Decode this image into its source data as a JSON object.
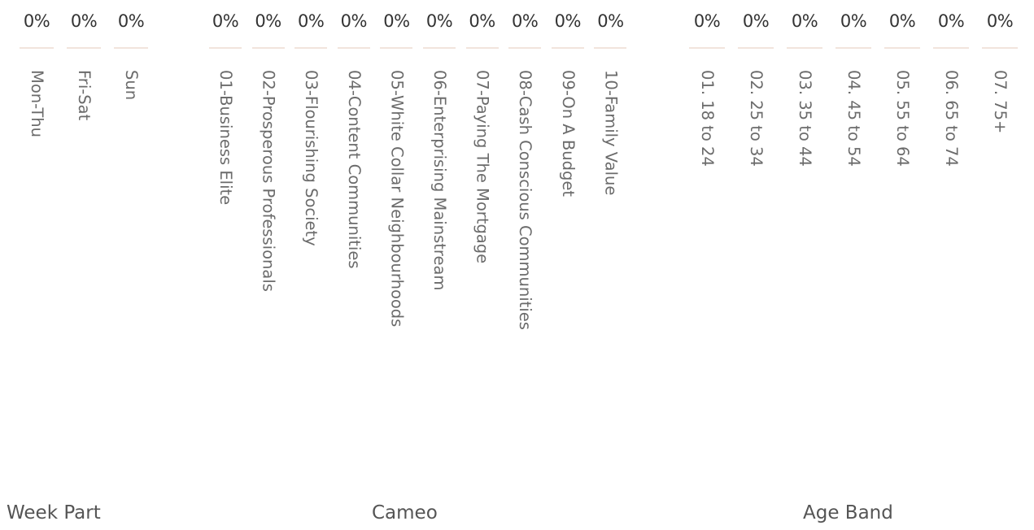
{
  "chart_data": [
    {
      "type": "bar",
      "title": "Week Part",
      "categories": [
        "Mon-Thu",
        "Fri-Sat",
        "Sun"
      ],
      "values": [
        0,
        0,
        0
      ],
      "labels": [
        "0%",
        "0%",
        "0%"
      ]
    },
    {
      "type": "bar",
      "title": "Cameo",
      "categories": [
        "01-Business Elite",
        "02-Prosperous Professionals",
        "03-Flourishing Society",
        "04-Content Communities",
        "05-White Collar Neighbourhoods",
        "06-Enterprising Mainstream",
        "07-Paying The Mortgage",
        "08-Cash Conscious Communities",
        "09-On A Budget",
        "10-Family Value"
      ],
      "values": [
        0,
        0,
        0,
        0,
        0,
        0,
        0,
        0,
        0,
        0
      ],
      "labels": [
        "0%",
        "0%",
        "0%",
        "0%",
        "0%",
        "0%",
        "0%",
        "0%",
        "0%",
        "0%"
      ]
    },
    {
      "type": "bar",
      "title": "Age Band",
      "categories": [
        "01. 18 to 24",
        "02. 25 to 34",
        "03. 35 to 44",
        "04. 45 to 54",
        "05. 55 to 64",
        "06. 65 to 74",
        "07. 75+"
      ],
      "values": [
        0,
        0,
        0,
        0,
        0,
        0,
        0
      ],
      "labels": [
        "0%",
        "0%",
        "0%",
        "0%",
        "0%",
        "0%",
        "0%"
      ]
    }
  ]
}
